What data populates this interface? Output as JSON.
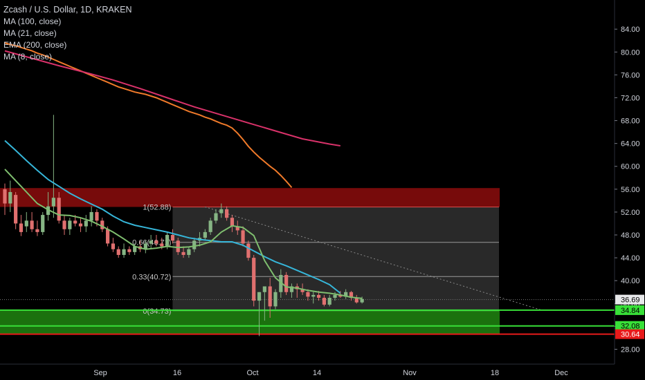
{
  "legend": {
    "title": "Zcash / U.S. Dollar, 1D, KRAKEN",
    "lines": [
      "MA (100, close)",
      "MA (21, close)",
      "EMA (200, close)",
      "MA (8, close)"
    ]
  },
  "colors": {
    "background": "#000000",
    "axis_text": "#d1d4dc",
    "up_candle": "#86b584",
    "down_candle": "#e0706f",
    "ma_slow": "#f07a2a",
    "ema_200": "#d9326a",
    "ma_mid": "#36b6d9",
    "ma_fast": "#7fbf6f",
    "resistance_zone": "#8c0d0d",
    "support_zone": "#1e7d10",
    "support_line": "#38e038",
    "red_line": "#e81a1a",
    "price_badge": "#e7e8ea",
    "fib_box": "#3c3c3c"
  },
  "chart_data": {
    "type": "candlestick",
    "price_axis": {
      "ticks": [
        "84.00",
        "80.00",
        "76.00",
        "72.00",
        "68.00",
        "64.00",
        "60.00",
        "56.00",
        "52.00",
        "48.00",
        "44.00",
        "40.00",
        "36.00",
        "32.00",
        "28.00"
      ],
      "range": [
        25.4,
        89.1
      ]
    },
    "time_axis": {
      "labels": [
        "Sep",
        "16",
        "Oct",
        "14",
        "Nov",
        "18",
        "Dec"
      ]
    },
    "candles": [
      [
        56.0,
        57.0,
        51.5,
        53.5
      ],
      [
        53.5,
        57.5,
        52.0,
        55.5
      ],
      [
        55.0,
        55.5,
        49.0,
        50.0
      ],
      [
        50.0,
        51.5,
        47.8,
        48.5
      ],
      [
        49.5,
        52.0,
        48.5,
        50.5
      ],
      [
        50.5,
        52.0,
        48.5,
        49.0
      ],
      [
        49.0,
        50.5,
        47.8,
        48.5
      ],
      [
        48.5,
        52.0,
        48.0,
        51.5
      ],
      [
        51.5,
        55.5,
        50.5,
        53.0
      ],
      [
        53.0,
        69.0,
        51.0,
        54.5
      ],
      [
        54.5,
        55.5,
        50.0,
        50.5
      ],
      [
        50.5,
        51.5,
        48.0,
        49.0
      ],
      [
        49.0,
        51.0,
        48.0,
        50.5
      ],
      [
        50.5,
        51.5,
        49.5,
        50.0
      ],
      [
        50.0,
        51.0,
        48.5,
        49.5
      ],
      [
        49.5,
        51.5,
        48.5,
        50.5
      ],
      [
        50.5,
        53.0,
        49.5,
        52.0
      ],
      [
        52.0,
        52.5,
        49.5,
        50.5
      ],
      [
        50.5,
        51.0,
        48.5,
        49.0
      ],
      [
        49.0,
        49.5,
        46.0,
        46.5
      ],
      [
        46.5,
        47.5,
        45.0,
        45.5
      ],
      [
        45.5,
        46.0,
        44.0,
        44.5
      ],
      [
        44.5,
        46.5,
        44.0,
        45.5
      ],
      [
        45.5,
        46.0,
        44.5,
        45.0
      ],
      [
        45.0,
        46.5,
        44.5,
        46.0
      ],
      [
        46.0,
        47.0,
        45.0,
        45.5
      ],
      [
        45.5,
        47.0,
        44.8,
        46.5
      ],
      [
        46.5,
        48.0,
        45.5,
        47.0
      ],
      [
        47.0,
        48.0,
        46.0,
        46.5
      ],
      [
        46.5,
        47.5,
        45.5,
        46.0
      ],
      [
        46.0,
        48.5,
        45.5,
        48.0
      ],
      [
        48.0,
        49.0,
        46.5,
        47.0
      ],
      [
        47.0,
        47.5,
        44.5,
        45.0
      ],
      [
        45.0,
        46.0,
        44.0,
        44.5
      ],
      [
        44.5,
        46.0,
        44.0,
        45.5
      ],
      [
        45.5,
        47.5,
        45.0,
        47.0
      ],
      [
        47.0,
        48.5,
        46.0,
        47.5
      ],
      [
        47.5,
        49.0,
        47.0,
        48.5
      ],
      [
        48.5,
        51.0,
        48.0,
        50.5
      ],
      [
        50.5,
        52.5,
        50.0,
        51.8
      ],
      [
        51.8,
        53.5,
        51.0,
        52.5
      ],
      [
        52.5,
        53.0,
        50.5,
        51.0
      ],
      [
        51.0,
        51.5,
        48.5,
        49.5
      ],
      [
        49.5,
        50.5,
        48.0,
        48.8
      ],
      [
        48.8,
        49.5,
        46.0,
        46.5
      ],
      [
        46.5,
        47.0,
        43.5,
        44.0
      ],
      [
        44.0,
        44.5,
        35.5,
        36.5
      ],
      [
        36.5,
        38.0,
        30.3,
        38.0
      ],
      [
        38.0,
        39.0,
        33.0,
        39.0
      ],
      [
        39.0,
        40.5,
        33.5,
        35.5
      ],
      [
        35.5,
        38.5,
        35.0,
        38.0
      ],
      [
        38.0,
        42.0,
        37.0,
        41.0
      ],
      [
        41.0,
        41.5,
        37.5,
        38.0
      ],
      [
        38.0,
        39.5,
        37.0,
        39.0
      ],
      [
        39.0,
        39.5,
        37.0,
        38.5
      ],
      [
        38.5,
        39.5,
        37.5,
        38.0
      ],
      [
        38.0,
        38.5,
        36.5,
        37.2
      ],
      [
        37.2,
        38.0,
        36.0,
        37.5
      ],
      [
        37.5,
        38.2,
        36.5,
        37.0
      ],
      [
        37.0,
        37.5,
        35.5,
        35.8
      ],
      [
        35.8,
        37.5,
        35.5,
        37.0
      ],
      [
        37.0,
        38.0,
        36.5,
        37.5
      ],
      [
        37.5,
        38.2,
        37.0,
        37.2
      ],
      [
        37.2,
        38.5,
        36.8,
        38.0
      ],
      [
        38.0,
        38.2,
        36.5,
        37.0
      ],
      [
        37.0,
        37.5,
        36.0,
        36.2
      ],
      [
        36.2,
        37.2,
        36.0,
        36.8
      ]
    ],
    "series": [
      {
        "name": "MA (100, close)",
        "points": [
          [
            0,
            81.6
          ],
          [
            1,
            81.3
          ],
          [
            2,
            81.1
          ],
          [
            3,
            80.8
          ],
          [
            4,
            80.5
          ],
          [
            5,
            80.2
          ],
          [
            6,
            79.8
          ],
          [
            7,
            79.5
          ],
          [
            8,
            79.1
          ],
          [
            9,
            78.7
          ],
          [
            10,
            78.3
          ],
          [
            11,
            77.9
          ],
          [
            12,
            77.5
          ],
          [
            13,
            77.1
          ],
          [
            14,
            76.7
          ],
          [
            15,
            76.3
          ],
          [
            16,
            75.9
          ],
          [
            17,
            75.5
          ],
          [
            18,
            75.1
          ],
          [
            19,
            74.7
          ],
          [
            20,
            74.3
          ],
          [
            21,
            73.9
          ],
          [
            22,
            73.6
          ],
          [
            23,
            73.3
          ],
          [
            24,
            73.0
          ],
          [
            25,
            72.8
          ],
          [
            26,
            72.6
          ],
          [
            27,
            72.3
          ],
          [
            28,
            72.0
          ],
          [
            29,
            71.6
          ],
          [
            30,
            71.2
          ],
          [
            31,
            70.8
          ],
          [
            32,
            70.4
          ],
          [
            33,
            70.0
          ],
          [
            34,
            69.6
          ],
          [
            35,
            69.3
          ],
          [
            36,
            69.0
          ],
          [
            37,
            68.6
          ],
          [
            38,
            68.3
          ],
          [
            39,
            67.9
          ],
          [
            40,
            67.5
          ],
          [
            41,
            67.2
          ],
          [
            42,
            66.7
          ],
          [
            43,
            65.8
          ],
          [
            44,
            64.7
          ],
          [
            45,
            63.5
          ],
          [
            46,
            62.5
          ],
          [
            47,
            61.6
          ],
          [
            48,
            60.8
          ],
          [
            49,
            60.0
          ],
          [
            50,
            59.3
          ],
          [
            51,
            58.4
          ],
          [
            52,
            57.4
          ],
          [
            53,
            56.3
          ]
        ]
      },
      {
        "name": "EMA (200, close)",
        "points": [
          [
            0,
            80.2
          ],
          [
            5,
            78.9
          ],
          [
            10,
            77.6
          ],
          [
            15,
            76.4
          ],
          [
            20,
            75.1
          ],
          [
            25,
            73.6
          ],
          [
            30,
            72.0
          ],
          [
            35,
            70.4
          ],
          [
            40,
            69.0
          ],
          [
            45,
            67.6
          ],
          [
            50,
            66.2
          ],
          [
            55,
            64.8
          ],
          [
            60,
            63.9
          ],
          [
            62,
            63.6
          ]
        ]
      },
      {
        "name": "MA (21, close)",
        "points": [
          [
            0,
            64.5
          ],
          [
            2,
            62.8
          ],
          [
            4,
            61.0
          ],
          [
            6,
            59.3
          ],
          [
            8,
            57.7
          ],
          [
            10,
            56.5
          ],
          [
            12,
            55.3
          ],
          [
            14,
            54.3
          ],
          [
            16,
            53.4
          ],
          [
            18,
            52.5
          ],
          [
            20,
            51.3
          ],
          [
            22,
            50.3
          ],
          [
            24,
            49.7
          ],
          [
            26,
            49.3
          ],
          [
            28,
            48.9
          ],
          [
            30,
            48.5
          ],
          [
            32,
            48.0
          ],
          [
            34,
            47.5
          ],
          [
            36,
            47.2
          ],
          [
            38,
            47.0
          ],
          [
            40,
            46.8
          ],
          [
            42,
            46.8
          ],
          [
            44,
            46.2
          ],
          [
            46,
            45.2
          ],
          [
            48,
            44.2
          ],
          [
            50,
            43.3
          ],
          [
            52,
            42.6
          ],
          [
            54,
            41.8
          ],
          [
            56,
            41.0
          ],
          [
            58,
            40.2
          ],
          [
            60,
            39.3
          ],
          [
            62,
            37.8
          ]
        ]
      },
      {
        "name": "MA (8, close)",
        "points": [
          [
            0,
            59.5
          ],
          [
            2,
            57.5
          ],
          [
            4,
            55.5
          ],
          [
            6,
            53.5
          ],
          [
            8,
            52.4
          ],
          [
            10,
            51.5
          ],
          [
            12,
            51.4
          ],
          [
            14,
            51.0
          ],
          [
            16,
            50.4
          ],
          [
            18,
            49.5
          ],
          [
            20,
            48.5
          ],
          [
            22,
            47.3
          ],
          [
            24,
            46.0
          ],
          [
            26,
            45.5
          ],
          [
            28,
            45.7
          ],
          [
            30,
            46.0
          ],
          [
            32,
            45.8
          ],
          [
            34,
            45.9
          ],
          [
            36,
            46.2
          ],
          [
            38,
            46.8
          ],
          [
            40,
            48.5
          ],
          [
            42,
            49.6
          ],
          [
            44,
            49.3
          ],
          [
            46,
            47.9
          ],
          [
            48,
            43.5
          ],
          [
            50,
            40.5
          ],
          [
            52,
            38.9
          ],
          [
            54,
            38.7
          ],
          [
            56,
            38.3
          ],
          [
            58,
            38.0
          ],
          [
            60,
            37.8
          ],
          [
            62,
            37.5
          ],
          [
            64,
            37.1
          ],
          [
            66,
            36.9
          ]
        ]
      }
    ],
    "fibonacci": {
      "levels": [
        {
          "ratio": 1,
          "price": 52.88,
          "label": "1(52.88)"
        },
        {
          "ratio": 0.66,
          "price": 46.71,
          "label": "0.66(46.71)"
        },
        {
          "ratio": 0.33,
          "price": 40.72,
          "label": "0.33(40.72)"
        },
        {
          "ratio": 0,
          "price": 34.73,
          "label": "0(34.73)"
        }
      ],
      "start_bar": 31,
      "end_bar": 99
    },
    "zones": [
      {
        "name": "resistance",
        "top": 56.2,
        "bottom": 52.9
      },
      {
        "name": "support",
        "top": 34.84,
        "bottom": 30.64
      }
    ],
    "horizontal_lines": [
      {
        "price": 34.84,
        "label": "34.84",
        "color": "#38e038"
      },
      {
        "price": 32.08,
        "label": "32.08",
        "color": "#38e038"
      },
      {
        "price": 30.64,
        "label": "30.64",
        "color": "#e81a1a"
      }
    ],
    "last_price": {
      "price": 36.69,
      "label": "36.69"
    },
    "trendline": {
      "from": [
        37,
        52.9
      ],
      "to": [
        99,
        34.9
      ]
    }
  }
}
